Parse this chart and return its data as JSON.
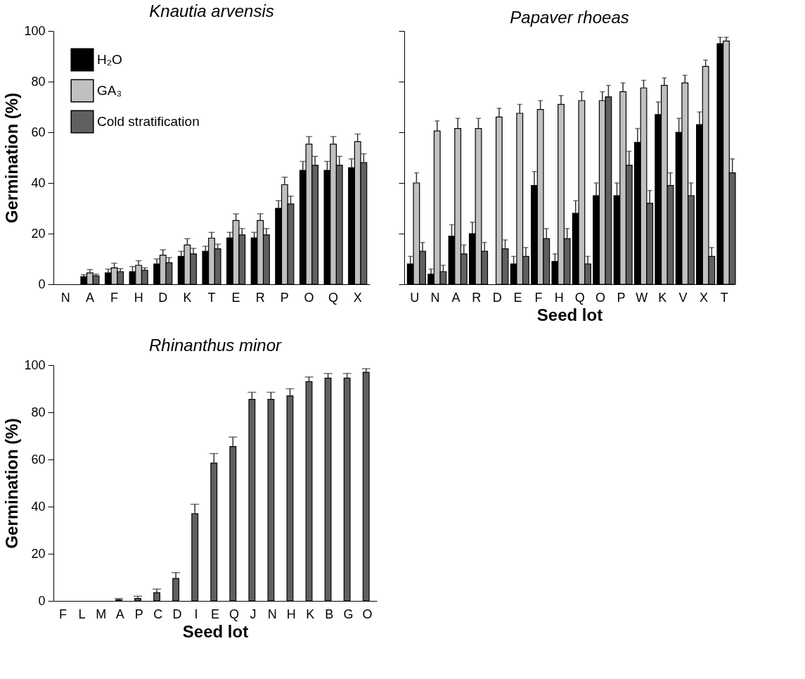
{
  "chart_data": [
    {
      "type": "bar",
      "title": "Knautia arvensis",
      "ylabel": "Germination (%)",
      "categories": [
        "N",
        "A",
        "F",
        "H",
        "D",
        "K",
        "T",
        "E",
        "R",
        "P",
        "O",
        "Q",
        "X"
      ],
      "ylim": [
        0,
        100
      ],
      "yticks": [
        0,
        20,
        40,
        60,
        80,
        100
      ],
      "legend": "top left",
      "grid": false,
      "series": [
        {
          "name": "H₂O",
          "color": "#000000",
          "values": [
            0,
            3,
            4.5,
            5,
            8,
            11,
            13,
            18.3,
            18.3,
            30,
            45,
            45,
            46
          ],
          "errors": [
            null,
            [
              3,
              3.8
            ],
            [
              4.5,
              6
            ],
            [
              5,
              7
            ],
            [
              8,
              10
            ],
            [
              11,
              13
            ],
            [
              13,
              15
            ],
            [
              18.3,
              20.5
            ],
            [
              18.3,
              20.5
            ],
            [
              30,
              33
            ],
            [
              45,
              48.5
            ],
            [
              45,
              48.5
            ],
            [
              46,
              49.5
            ]
          ]
        },
        {
          "name": "GA₃",
          "color": "#c0c0c0",
          "values": [
            0,
            4.5,
            6.5,
            7.5,
            11.5,
            15.5,
            18.2,
            25.2,
            25.2,
            39.3,
            55.3,
            55.3,
            56.3
          ],
          "errors": [
            null,
            [
              4.5,
              5.8
            ],
            [
              6.5,
              8.3
            ],
            [
              7.5,
              9.3
            ],
            [
              11.5,
              13.6
            ],
            [
              15.5,
              18
            ],
            [
              18.2,
              20.5
            ],
            [
              25.2,
              27.8
            ],
            [
              25.2,
              27.8
            ],
            [
              39.3,
              42.3
            ],
            [
              55.3,
              58.3
            ],
            [
              55.3,
              58.3
            ],
            [
              56.3,
              59.3
            ]
          ]
        },
        {
          "name": "Cold stratification",
          "color": "#606060",
          "values": [
            0,
            3.3,
            5,
            5.5,
            8.5,
            12,
            14,
            19.5,
            19.5,
            31.7,
            47,
            47,
            48
          ],
          "errors": [
            null,
            [
              3.3,
              4
            ],
            [
              5,
              6.2
            ],
            [
              5.5,
              6.5
            ],
            [
              8.5,
              10.5
            ],
            [
              12,
              14.2
            ],
            [
              14,
              15.8
            ],
            [
              19.5,
              22
            ],
            [
              19.5,
              22
            ],
            [
              31.7,
              34.8
            ],
            [
              47,
              50.5
            ],
            [
              47,
              50.5
            ],
            [
              48,
              51.5
            ]
          ]
        }
      ]
    },
    {
      "type": "bar",
      "title": "Papaver rhoeas",
      "xlabel": "Seed lot",
      "categories": [
        "U",
        "N",
        "A",
        "R",
        "D",
        "E",
        "F",
        "H",
        "Q",
        "O",
        "P",
        "W",
        "K",
        "V",
        "X",
        "T"
      ],
      "ylim": [
        0,
        100
      ],
      "yticks": [
        0,
        20,
        40,
        60,
        80,
        100
      ],
      "tick_labels": "x",
      "grid": false,
      "series": [
        {
          "color": "#000000",
          "values": [
            8,
            4,
            19,
            20,
            0,
            8,
            39,
            9,
            28,
            35,
            35,
            56,
            67,
            60,
            63,
            95
          ],
          "errors": [
            [
              8,
              11
            ],
            [
              4,
              6
            ],
            [
              19,
              23.5
            ],
            [
              20,
              24.5
            ],
            null,
            [
              8,
              11
            ],
            [
              39,
              44.5
            ],
            [
              9,
              12
            ],
            [
              28,
              33
            ],
            [
              35,
              40
            ],
            [
              35,
              40
            ],
            [
              56,
              61.5
            ],
            [
              67,
              72
            ],
            [
              60,
              65.5
            ],
            [
              63,
              68
            ],
            [
              95,
              97.5
            ]
          ]
        },
        {
          "color": "#c0c0c0",
          "values": [
            40,
            60.5,
            61.5,
            61.5,
            66,
            67.5,
            69,
            71,
            72.5,
            72.5,
            76,
            77.5,
            78.5,
            79.5,
            86,
            96
          ],
          "errors": [
            [
              40,
              44
            ],
            [
              60.5,
              64.5
            ],
            [
              61.5,
              65.5
            ],
            [
              61.5,
              65.5
            ],
            [
              66,
              69.5
            ],
            [
              67.5,
              71
            ],
            [
              69,
              72.5
            ],
            [
              71,
              74.5
            ],
            [
              72.5,
              76
            ],
            [
              72.5,
              76
            ],
            [
              76,
              79.5
            ],
            [
              77.5,
              80.5
            ],
            [
              78.5,
              81.5
            ],
            [
              79.5,
              82.5
            ],
            [
              86,
              88.5
            ],
            [
              96,
              97.5
            ]
          ]
        },
        {
          "color": "#606060",
          "values": [
            13,
            5,
            12,
            13,
            14,
            11,
            18,
            18,
            8,
            74,
            47,
            32,
            39,
            35,
            11,
            44
          ],
          "errors": [
            [
              13,
              16.5
            ],
            [
              5,
              7.5
            ],
            [
              12,
              15.5
            ],
            [
              13,
              16.5
            ],
            [
              14,
              17.5
            ],
            [
              11,
              14.5
            ],
            [
              18,
              22
            ],
            [
              18,
              22
            ],
            [
              8,
              11
            ],
            [
              74,
              78.5
            ],
            [
              47,
              52.5
            ],
            [
              32,
              37
            ],
            [
              39,
              44
            ],
            [
              35,
              40
            ],
            [
              11,
              14.5
            ],
            [
              44,
              49.5
            ]
          ]
        }
      ]
    },
    {
      "type": "bar",
      "title": "Rhinanthus minor",
      "xlabel": "Seed lot",
      "ylabel": "Germination (%)",
      "categories": [
        "F",
        "L",
        "M",
        "A",
        "P",
        "C",
        "D",
        "I",
        "E",
        "Q",
        "J",
        "N",
        "H",
        "K",
        "B",
        "G",
        "O"
      ],
      "ylim": [
        0,
        100
      ],
      "yticks": [
        0,
        20,
        40,
        60,
        80,
        100
      ],
      "grid": false,
      "series": [
        {
          "color": "#606060",
          "values": [
            0,
            0,
            0,
            0.5,
            1,
            3.5,
            9.5,
            37,
            58.5,
            65.5,
            85.5,
            85.5,
            87,
            93,
            94.5,
            94.5,
            97
          ],
          "errors": [
            null,
            null,
            null,
            [
              0.5,
              1
            ],
            [
              1,
              2
            ],
            [
              3.5,
              5
            ],
            [
              9.5,
              12
            ],
            [
              37,
              41
            ],
            [
              58.5,
              62.5
            ],
            [
              65.5,
              69.5
            ],
            [
              85.5,
              88.5
            ],
            [
              85.5,
              88.5
            ],
            [
              87,
              90
            ],
            [
              93,
              95
            ],
            [
              94.5,
              96.5
            ],
            [
              94.5,
              96.5
            ],
            [
              97,
              98.5
            ]
          ]
        }
      ]
    }
  ]
}
